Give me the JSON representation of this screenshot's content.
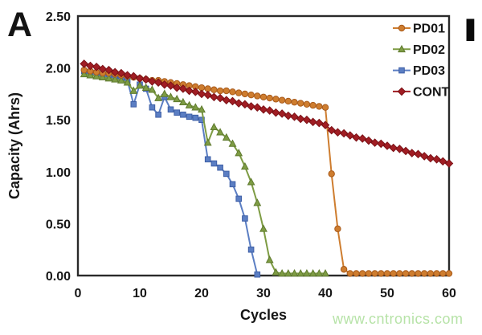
{
  "figure": {
    "panel_label": "A",
    "cropped_label": "I",
    "watermark": "www.cntronics.com",
    "watermark_color": "#b7e3a8",
    "background_color": "#ffffff",
    "text_color": "#161616"
  },
  "chart_data": {
    "type": "line",
    "title": "",
    "xlabel": "Cycles",
    "ylabel": "Capacity (Ahrs)",
    "xlim": [
      0,
      60
    ],
    "ylim": [
      0,
      2.5
    ],
    "x_ticks": [
      0,
      10,
      20,
      30,
      40,
      50,
      60
    ],
    "y_ticks": [
      0,
      0.5,
      1.0,
      1.5,
      2.0,
      2.5
    ],
    "y_tick_labels": [
      "0.00",
      "0.50",
      "1.00",
      "1.50",
      "2.00",
      "2.50"
    ],
    "grid": false,
    "axis_color": "#2a2a2a",
    "legend": {
      "position": "top-right-inside",
      "entries": [
        "PD01",
        "PD02",
        "PD03",
        "CONT"
      ]
    },
    "draw_order": [
      "PD03",
      "PD02",
      "PD01",
      "CONT"
    ],
    "series": [
      {
        "name": "PD01",
        "marker": "circle",
        "color": "#CE7D2F",
        "edge": "#A85A1B",
        "x_start": 1,
        "values": [
          1.98,
          1.97,
          1.96,
          1.95,
          1.95,
          1.94,
          1.93,
          1.92,
          1.91,
          1.9,
          1.89,
          1.88,
          1.88,
          1.87,
          1.86,
          1.85,
          1.84,
          1.83,
          1.82,
          1.81,
          1.8,
          1.79,
          1.78,
          1.78,
          1.77,
          1.76,
          1.75,
          1.74,
          1.73,
          1.72,
          1.71,
          1.7,
          1.69,
          1.68,
          1.67,
          1.66,
          1.65,
          1.64,
          1.63,
          1.62,
          0.98,
          0.45,
          0.06,
          0.02,
          0.02,
          0.02,
          0.02,
          0.02,
          0.02,
          0.02,
          0.02,
          0.02,
          0.02,
          0.02,
          0.02,
          0.02,
          0.02,
          0.02,
          0.02,
          0.02
        ]
      },
      {
        "name": "PD02",
        "marker": "triangle",
        "color": "#7E9C44",
        "edge": "#5F7A2E",
        "x_start": 1,
        "values": [
          1.94,
          1.93,
          1.92,
          1.91,
          1.9,
          1.89,
          1.88,
          1.86,
          1.78,
          1.83,
          1.81,
          1.79,
          1.71,
          1.75,
          1.72,
          1.7,
          1.67,
          1.64,
          1.62,
          1.6,
          1.28,
          1.43,
          1.38,
          1.33,
          1.27,
          1.18,
          1.05,
          0.9,
          0.7,
          0.45,
          0.15,
          0.03,
          0.02,
          0.02,
          0.02,
          0.02,
          0.02,
          0.02,
          0.02,
          0.02
        ]
      },
      {
        "name": "PD03",
        "marker": "square",
        "color": "#5B7EC3",
        "edge": "#3E5FA6",
        "x_start": 1,
        "values": [
          1.97,
          1.96,
          1.95,
          1.94,
          1.93,
          1.91,
          1.9,
          1.88,
          1.65,
          1.84,
          1.8,
          1.62,
          1.55,
          1.72,
          1.6,
          1.57,
          1.55,
          1.53,
          1.52,
          1.5,
          1.12,
          1.08,
          1.04,
          0.98,
          0.88,
          0.74,
          0.55,
          0.25,
          0.01
        ]
      },
      {
        "name": "CONT",
        "marker": "diamond",
        "color": "#A01D23",
        "edge": "#7C1217",
        "x_start": 1,
        "values": [
          2.04,
          2.02,
          2.01,
          1.99,
          1.98,
          1.96,
          1.95,
          1.93,
          1.92,
          1.9,
          1.89,
          1.87,
          1.86,
          1.84,
          1.83,
          1.81,
          1.8,
          1.78,
          1.77,
          1.75,
          1.74,
          1.72,
          1.71,
          1.69,
          1.68,
          1.66,
          1.65,
          1.63,
          1.62,
          1.6,
          1.59,
          1.57,
          1.56,
          1.54,
          1.53,
          1.51,
          1.5,
          1.48,
          1.47,
          1.45,
          1.4,
          1.38,
          1.37,
          1.35,
          1.33,
          1.32,
          1.3,
          1.28,
          1.27,
          1.25,
          1.23,
          1.22,
          1.2,
          1.18,
          1.17,
          1.15,
          1.13,
          1.12,
          1.1,
          1.08
        ]
      }
    ]
  }
}
